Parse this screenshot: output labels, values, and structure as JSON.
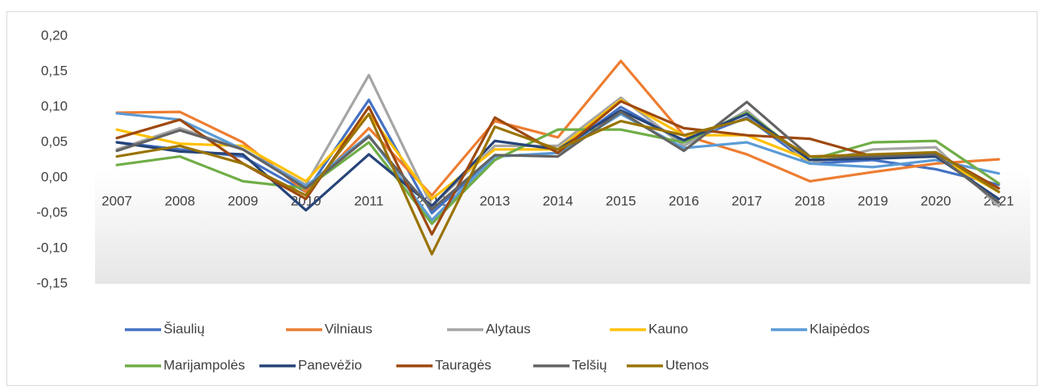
{
  "chart_data": {
    "type": "line",
    "categories": [
      "2007",
      "2008",
      "2009",
      "2010",
      "2011",
      "2012",
      "2013",
      "2014",
      "2015",
      "2016",
      "2017",
      "2018",
      "2019",
      "2020",
      "2021"
    ],
    "ylim": [
      -0.15,
      0.2
    ],
    "yticks": [
      {
        "value": -0.15,
        "label": "-0,15"
      },
      {
        "value": -0.1,
        "label": "-0,10"
      },
      {
        "value": -0.05,
        "label": "-0,05"
      },
      {
        "value": 0,
        "label": "0,00"
      },
      {
        "value": 0.05,
        "label": "0,05"
      },
      {
        "value": 0.1,
        "label": "0,10"
      },
      {
        "value": 0.15,
        "label": "0,15"
      },
      {
        "value": 0.2,
        "label": "0,20"
      }
    ],
    "grid": false,
    "legend": "bottom",
    "series": [
      {
        "name": "Šiaulių",
        "color": "#4472c4",
        "values": [
          0.05,
          0.04,
          0.03,
          -0.02,
          0.11,
          -0.05,
          0.03,
          0.035,
          0.1,
          0.05,
          0.085,
          0.02,
          0.025,
          0.012,
          -0.01
        ]
      },
      {
        "name": "Vilniaus",
        "color": "#ed7d31",
        "values": [
          0.092,
          0.093,
          0.05,
          -0.02,
          0.07,
          -0.025,
          0.08,
          0.057,
          0.165,
          0.06,
          0.033,
          -0.005,
          0.008,
          0.02,
          0.026
        ]
      },
      {
        "name": "Alytaus",
        "color": "#a5a5a5",
        "values": [
          0.04,
          0.07,
          0.04,
          -0.01,
          0.145,
          -0.04,
          0.045,
          0.045,
          0.113,
          0.045,
          0.095,
          0.02,
          0.04,
          0.043,
          -0.04
        ]
      },
      {
        "name": "Kauno",
        "color": "#ffc000",
        "values": [
          0.068,
          0.048,
          0.045,
          -0.005,
          0.09,
          -0.03,
          0.04,
          0.04,
          0.11,
          0.06,
          0.06,
          0.025,
          0.03,
          0.03,
          -0.02
        ]
      },
      {
        "name": "Klaipėdos",
        "color": "#5b9bd5",
        "values": [
          0.091,
          0.082,
          0.04,
          -0.012,
          0.06,
          -0.06,
          0.03,
          0.035,
          0.09,
          0.042,
          0.05,
          0.02,
          0.015,
          0.025,
          0.006
        ]
      },
      {
        "name": "Marijampolės",
        "color": "#70ad47",
        "values": [
          0.018,
          0.03,
          -0.005,
          -0.015,
          0.05,
          -0.065,
          0.025,
          0.068,
          0.068,
          0.05,
          0.092,
          0.025,
          0.05,
          0.052,
          -0.008
        ]
      },
      {
        "name": "Panevėžio",
        "color": "#264478",
        "values": [
          0.05,
          0.037,
          0.033,
          -0.046,
          0.033,
          -0.04,
          0.052,
          0.04,
          0.095,
          0.053,
          0.09,
          0.025,
          0.027,
          0.03,
          -0.03
        ]
      },
      {
        "name": "Tauragės",
        "color": "#9e480e",
        "values": [
          0.056,
          0.082,
          0.02,
          -0.03,
          0.1,
          -0.08,
          0.085,
          0.035,
          0.108,
          0.07,
          0.06,
          0.055,
          0.03,
          0.035,
          -0.015
        ]
      },
      {
        "name": "Telšių",
        "color": "#636363",
        "values": [
          0.038,
          0.067,
          0.04,
          -0.015,
          0.058,
          -0.045,
          0.032,
          0.03,
          0.093,
          0.038,
          0.107,
          0.03,
          0.03,
          0.033,
          -0.035
        ]
      },
      {
        "name": "Utenos",
        "color": "#997300",
        "values": [
          0.03,
          0.045,
          0.02,
          -0.025,
          0.09,
          -0.108,
          0.072,
          0.04,
          0.08,
          0.06,
          0.083,
          0.03,
          0.033,
          0.036,
          -0.02
        ]
      }
    ]
  }
}
